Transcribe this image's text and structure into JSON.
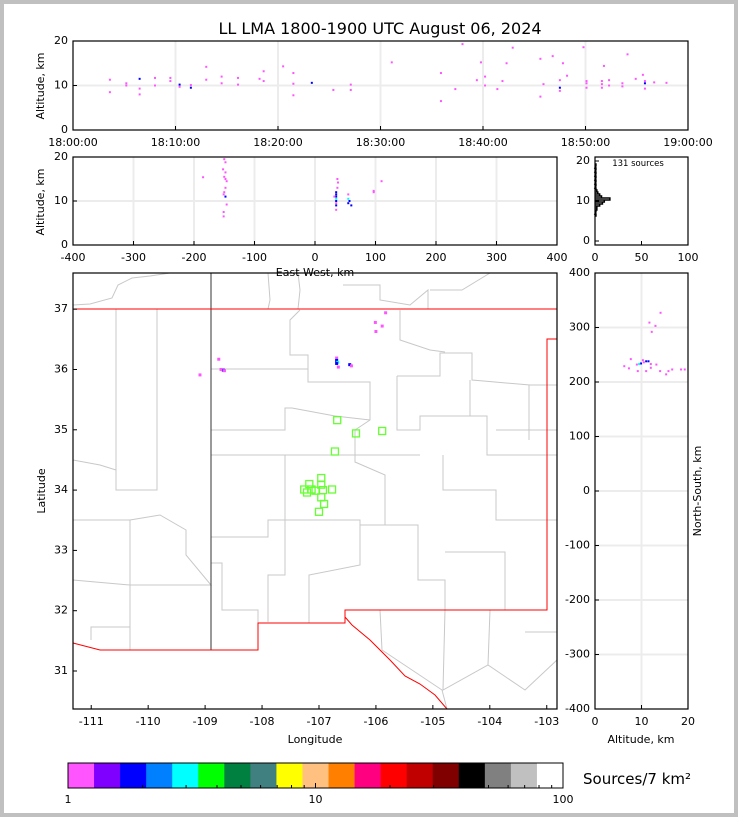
{
  "title": "LL LMA 1800-1900 UTC August 06, 2024",
  "colors": {
    "magenta": "#ff55ff",
    "blue": "#0000ff",
    "cyan": "#00ffff",
    "station": "#66ff33",
    "state_border": "#ff0000",
    "county": "#c8c8c8"
  },
  "chart_data": [
    {
      "id": "time-height",
      "type": "scatter",
      "ylabel": "Altitude, km",
      "xlim": [
        "18:00:00",
        "19:00:00"
      ],
      "ylim": [
        0,
        20
      ],
      "xticks": [
        "18:00:00",
        "18:10:00",
        "18:20:00",
        "18:30:00",
        "18:40:00",
        "18:50:00",
        "19:00:00"
      ],
      "yticks": [
        0,
        10,
        20
      ],
      "grid": true,
      "points": [
        [
          "18:03:36",
          11.3,
          "#ff55ff"
        ],
        [
          "18:03:36",
          8.5,
          "#ff55ff"
        ],
        [
          "18:05:12",
          10.5,
          "#ff55ff"
        ],
        [
          "18:05:12",
          10.0,
          "#ff55ff"
        ],
        [
          "18:06:30",
          11.5,
          "#0000ff"
        ],
        [
          "18:06:30",
          8.0,
          "#ff55ff"
        ],
        [
          "18:06:30",
          9.3,
          "#ff55ff"
        ],
        [
          "18:08:00",
          10.0,
          "#ff55ff"
        ],
        [
          "18:08:00",
          11.7,
          "#ff55ff"
        ],
        [
          "18:09:30",
          11.0,
          "#ff55ff"
        ],
        [
          "18:09:30",
          11.7,
          "#ff55ff"
        ],
        [
          "18:10:24",
          10.2,
          "#0000ff"
        ],
        [
          "18:10:24",
          9.7,
          "#ff55ff"
        ],
        [
          "18:11:30",
          9.5,
          "#0000ff"
        ],
        [
          "18:11:30",
          10.1,
          "#ff55ff"
        ],
        [
          "18:13:00",
          14.2,
          "#ff55ff"
        ],
        [
          "18:13:00",
          11.3,
          "#ff55ff"
        ],
        [
          "18:14:30",
          12.0,
          "#ff55ff"
        ],
        [
          "18:14:30",
          10.5,
          "#ff55ff"
        ],
        [
          "18:16:06",
          11.7,
          "#ff55ff"
        ],
        [
          "18:16:06",
          10.2,
          "#ff55ff"
        ],
        [
          "18:18:12",
          11.5,
          "#ff55ff"
        ],
        [
          "18:18:36",
          13.2,
          "#ff55ff"
        ],
        [
          "18:18:36",
          11.0,
          "#ff55ff"
        ],
        [
          "18:20:30",
          14.3,
          "#ff55ff"
        ],
        [
          "18:21:30",
          12.8,
          "#ff55ff"
        ],
        [
          "18:21:30",
          10.4,
          "#ff55ff"
        ],
        [
          "18:21:30",
          7.8,
          "#ff55ff"
        ],
        [
          "18:23:18",
          10.6,
          "#0000ff"
        ],
        [
          "18:25:24",
          9.0,
          "#ff55ff"
        ],
        [
          "18:27:06",
          10.2,
          "#ff55ff"
        ],
        [
          "18:27:06",
          9.0,
          "#ff55ff"
        ],
        [
          "18:31:06",
          15.2,
          "#ff55ff"
        ],
        [
          "18:35:54",
          12.8,
          "#ff55ff"
        ],
        [
          "18:35:54",
          6.5,
          "#ff55ff"
        ],
        [
          "18:37:18",
          9.2,
          "#ff55ff"
        ],
        [
          "18:38:00",
          19.3,
          "#ff55ff"
        ],
        [
          "18:39:24",
          11.2,
          "#ff55ff"
        ],
        [
          "18:39:48",
          15.2,
          "#ff55ff"
        ],
        [
          "18:40:12",
          12.0,
          "#ff55ff"
        ],
        [
          "18:40:12",
          10.0,
          "#ff55ff"
        ],
        [
          "18:41:24",
          9.2,
          "#ff55ff"
        ],
        [
          "18:41:54",
          11.0,
          "#ff55ff"
        ],
        [
          "18:42:18",
          15.0,
          "#ff55ff"
        ],
        [
          "18:42:54",
          18.5,
          "#ff55ff"
        ],
        [
          "18:45:36",
          16.0,
          "#ff55ff"
        ],
        [
          "18:45:36",
          7.5,
          "#ff55ff"
        ],
        [
          "18:45:54",
          10.3,
          "#ff55ff"
        ],
        [
          "18:46:48",
          16.6,
          "#ff55ff"
        ],
        [
          "18:47:30",
          11.2,
          "#ff55ff"
        ],
        [
          "18:47:30",
          9.5,
          "#0000ff"
        ],
        [
          "18:47:30",
          8.8,
          "#ff55ff"
        ],
        [
          "18:47:48",
          15.0,
          "#ff55ff"
        ],
        [
          "18:48:12",
          12.2,
          "#ff55ff"
        ],
        [
          "18:49:48",
          18.6,
          "#ff55ff"
        ],
        [
          "18:50:06",
          10.5,
          "#ff55ff"
        ],
        [
          "18:50:06",
          9.5,
          "#ff55ff"
        ],
        [
          "18:50:06",
          11.0,
          "#ff55ff"
        ],
        [
          "18:51:36",
          10.3,
          "#ff55ff"
        ],
        [
          "18:51:36",
          9.5,
          "#ff55ff"
        ],
        [
          "18:51:36",
          11.0,
          "#ff55ff"
        ],
        [
          "18:51:48",
          14.4,
          "#ff55ff"
        ],
        [
          "18:52:18",
          11.2,
          "#ff55ff"
        ],
        [
          "18:52:18",
          10.0,
          "#ff55ff"
        ],
        [
          "18:53:36",
          9.8,
          "#ff55ff"
        ],
        [
          "18:53:36",
          10.5,
          "#ff55ff"
        ],
        [
          "18:54:06",
          17.0,
          "#ff55ff"
        ],
        [
          "18:54:54",
          11.5,
          "#ff55ff"
        ],
        [
          "18:55:36",
          12.4,
          "#ff55ff"
        ],
        [
          "18:55:48",
          10.5,
          "#0000ff"
        ],
        [
          "18:55:48",
          9.3,
          "#ff55ff"
        ],
        [
          "18:55:48",
          11.0,
          "#ff55ff"
        ],
        [
          "18:56:42",
          10.7,
          "#ff55ff"
        ],
        [
          "18:57:54",
          10.6,
          "#ff55ff"
        ]
      ]
    },
    {
      "id": "ew-height",
      "type": "scatter",
      "xlabel": "East-West, km",
      "ylabel": "Altitude, km",
      "xlim": [
        -400,
        400
      ],
      "ylim": [
        0,
        20
      ],
      "xticks": [
        -400,
        -300,
        -200,
        -100,
        0,
        100,
        200,
        300,
        400
      ],
      "yticks": [
        0,
        10,
        20
      ],
      "grid": true,
      "points": [
        [
          -150,
          19.5,
          "#ff55ff"
        ],
        [
          -148,
          18.8,
          "#ff55ff"
        ],
        [
          -152,
          17.2,
          "#ff55ff"
        ],
        [
          -148,
          16.5,
          "#ff55ff"
        ],
        [
          -150,
          15.5,
          "#ff55ff"
        ],
        [
          -148,
          15.0,
          "#ff55ff"
        ],
        [
          -146,
          14.5,
          "#ff55ff"
        ],
        [
          -148,
          13.0,
          "#ff55ff"
        ],
        [
          -150,
          12.0,
          "#ff55ff"
        ],
        [
          -151,
          11.5,
          "#ff55ff"
        ],
        [
          -148,
          11.0,
          "#0000ff"
        ],
        [
          -151,
          7.5,
          "#ff55ff"
        ],
        [
          -151,
          6.5,
          "#ff55ff"
        ],
        [
          -146,
          9.2,
          "#ff55ff"
        ],
        [
          -185,
          15.4,
          "#ff55ff"
        ],
        [
          35,
          12.0,
          "#0000ff"
        ],
        [
          35,
          11.5,
          "#0000ff"
        ],
        [
          35,
          11.0,
          "#0000ff"
        ],
        [
          32,
          11.0,
          "#ff55ff"
        ],
        [
          35,
          10.5,
          "#00ffff"
        ],
        [
          35,
          10.0,
          "#0000ff"
        ],
        [
          35,
          9.5,
          "#ff55ff"
        ],
        [
          35,
          9.0,
          "#0000ff"
        ],
        [
          35,
          8.0,
          "#ff55ff"
        ],
        [
          37,
          15.0,
          "#ff55ff"
        ],
        [
          38,
          14.2,
          "#ff55ff"
        ],
        [
          37,
          13.0,
          "#ff55ff"
        ],
        [
          55,
          11.5,
          "#ff55ff"
        ],
        [
          55,
          10.5,
          "#00ffff"
        ],
        [
          57,
          10.0,
          "#0000ff"
        ],
        [
          55,
          9.5,
          "#0000ff"
        ],
        [
          60,
          9.0,
          "#0000ff"
        ],
        [
          97,
          12.3,
          "#ff55ff"
        ],
        [
          97,
          12.0,
          "#ff55ff"
        ],
        [
          110,
          14.5,
          "#ff55ff"
        ]
      ]
    },
    {
      "id": "altitude-histogram",
      "type": "line",
      "annotation": "131 sources",
      "xlim": [
        0,
        100
      ],
      "ylim": [
        0,
        20
      ],
      "xticks": [
        0,
        50,
        100
      ],
      "yticks": [
        0,
        10,
        20
      ],
      "altitudes": [
        6.5,
        7.5,
        8,
        8.5,
        9,
        9.5,
        10,
        10.5,
        11,
        11.5,
        12,
        12.5,
        13,
        14,
        15,
        16,
        17,
        18,
        19
      ],
      "counts": [
        1,
        1,
        2,
        2,
        5,
        8,
        10,
        16,
        7,
        5,
        3,
        2,
        1,
        1,
        1,
        1,
        1,
        1,
        1
      ]
    },
    {
      "id": "plan-view",
      "type": "scatter",
      "xlabel": "Longitude",
      "ylabel": "Latitude",
      "xlim": [
        -111.32,
        -102.82
      ],
      "ylim": [
        30.37,
        37.6
      ],
      "xticks": [
        -111,
        -110,
        -109,
        -108,
        -107,
        -106,
        -105,
        -104,
        -103
      ],
      "yticks": [
        31,
        32,
        33,
        34,
        35,
        36,
        37
      ],
      "points": [
        [
          -105.83,
          36.94,
          "#ff55ff"
        ],
        [
          -106.01,
          36.78,
          "#ff55ff"
        ],
        [
          -105.89,
          36.72,
          "#ff55ff"
        ],
        [
          -106.0,
          36.63,
          "#ff55ff"
        ],
        [
          -106.69,
          36.19,
          "#ff55ff"
        ],
        [
          -106.69,
          36.15,
          "#0000ff"
        ],
        [
          -106.67,
          36.12,
          "#00ffff"
        ],
        [
          -106.69,
          36.1,
          "#0000ff"
        ],
        [
          -106.66,
          36.04,
          "#ff55ff"
        ],
        [
          -106.46,
          36.08,
          "#0000ff"
        ],
        [
          -106.43,
          36.06,
          "#ff55ff"
        ],
        [
          -108.68,
          35.99,
          "#0000ff"
        ],
        [
          -108.72,
          36.0,
          "#ff55ff"
        ],
        [
          -108.76,
          36.17,
          "#ff55ff"
        ],
        [
          -108.66,
          35.98,
          "#ff55ff"
        ],
        [
          -109.09,
          35.91,
          "#ff55ff"
        ]
      ],
      "stations": [
        [
          -106.68,
          35.16
        ],
        [
          -106.35,
          34.94
        ],
        [
          -105.89,
          34.98
        ],
        [
          -106.72,
          34.64
        ],
        [
          -106.96,
          34.2
        ],
        [
          -106.96,
          34.09
        ],
        [
          -107.17,
          34.1
        ],
        [
          -107.26,
          34.01
        ],
        [
          -107.13,
          34.01
        ],
        [
          -107.21,
          33.96
        ],
        [
          -107.06,
          33.99
        ],
        [
          -106.93,
          34.0
        ],
        [
          -106.77,
          34.01
        ],
        [
          -106.96,
          33.88
        ],
        [
          -106.91,
          33.77
        ],
        [
          -107.0,
          33.64
        ]
      ]
    },
    {
      "id": "ns-height",
      "type": "scatter",
      "xlabel": "Altitude, km",
      "ylabel": "North-South, km",
      "xlim": [
        0,
        20
      ],
      "ylim": [
        -400,
        400
      ],
      "xticks": [
        0,
        10,
        20
      ],
      "yticks": [
        -400,
        -300,
        -200,
        -100,
        0,
        100,
        200,
        300,
        400
      ],
      "grid": true,
      "points": [
        [
          9.9,
          234,
          "#0000ff"
        ],
        [
          9.5,
          233,
          "#00ffff"
        ],
        [
          10.5,
          236,
          "#ff55ff"
        ],
        [
          11.0,
          238,
          "#0000ff"
        ],
        [
          11.5,
          238,
          "#0000ff"
        ],
        [
          10.3,
          240,
          "#ff55ff"
        ],
        [
          12.0,
          233,
          "#ff55ff"
        ],
        [
          9.0,
          232,
          "#ff55ff"
        ],
        [
          14.1,
          327,
          "#ff55ff"
        ],
        [
          11.7,
          309,
          "#ff55ff"
        ],
        [
          13.0,
          303,
          "#ff55ff"
        ],
        [
          12.2,
          292,
          "#ff55ff"
        ],
        [
          6.3,
          229,
          "#ff55ff"
        ],
        [
          7.7,
          242,
          "#ff55ff"
        ],
        [
          7.3,
          225,
          "#ff55ff"
        ],
        [
          9.2,
          220,
          "#ff55ff"
        ],
        [
          11.0,
          220,
          "#ff55ff"
        ],
        [
          12.0,
          226,
          "#ff55ff"
        ],
        [
          13.2,
          232,
          "#ff55ff"
        ],
        [
          14.0,
          220,
          "#ff55ff"
        ],
        [
          15.3,
          214,
          "#ff55ff"
        ],
        [
          15.8,
          220,
          "#ff55ff"
        ],
        [
          16.6,
          223,
          "#ff55ff"
        ],
        [
          18.5,
          223,
          "#ff55ff"
        ],
        [
          19.3,
          223,
          "#ff55ff"
        ]
      ]
    }
  ],
  "colorbar": {
    "label": "Sources/7 km²",
    "scale": "log",
    "range": [
      1,
      100
    ],
    "ticks": [
      "1",
      "10",
      "100"
    ],
    "colors": [
      "#ff55ff",
      "#8000ff",
      "#0000ff",
      "#0080ff",
      "#00ffff",
      "#00ff00",
      "#008040",
      "#408080",
      "#ffff00",
      "#ffc080",
      "#ff8000",
      "#ff0080",
      "#ff0000",
      "#c00000",
      "#800000",
      "#000000",
      "#808080",
      "#c0c0c0",
      "#ffffff"
    ]
  }
}
